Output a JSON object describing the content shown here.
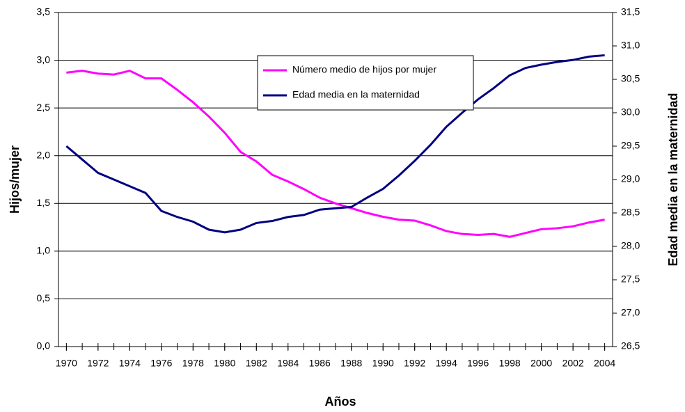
{
  "chart_data": {
    "type": "line",
    "xlabel": "Años",
    "ylabel": "Hijos/mujer",
    "y2label": "Edad media en la maternidad",
    "x": [
      1970,
      1971,
      1972,
      1973,
      1974,
      1975,
      1976,
      1977,
      1978,
      1979,
      1980,
      1981,
      1982,
      1983,
      1984,
      1985,
      1986,
      1987,
      1988,
      1989,
      1990,
      1991,
      1992,
      1993,
      1994,
      1995,
      1996,
      1997,
      1998,
      1999,
      2000,
      2001,
      2002,
      2003,
      2004
    ],
    "xlim": [
      1969.5,
      2004.5
    ],
    "xticks": [
      1970,
      1972,
      1974,
      1976,
      1978,
      1980,
      1982,
      1984,
      1986,
      1988,
      1990,
      1992,
      1994,
      1996,
      1998,
      2000,
      2002,
      2004
    ],
    "ylim": [
      0,
      3.5
    ],
    "yticks": [
      {
        "value": 0,
        "label": "0,0"
      },
      {
        "value": 0.5,
        "label": "0,5"
      },
      {
        "value": 1,
        "label": "1,0"
      },
      {
        "value": 1.5,
        "label": "1,5"
      },
      {
        "value": 2,
        "label": "2,0"
      },
      {
        "value": 2.5,
        "label": "2,5"
      },
      {
        "value": 3,
        "label": "3,0"
      },
      {
        "value": 3.5,
        "label": "3,5"
      }
    ],
    "y2lim": [
      26.5,
      31.5
    ],
    "y2ticks": [
      {
        "value": 26.5,
        "label": "26,5"
      },
      {
        "value": 27,
        "label": "27,0"
      },
      {
        "value": 27.5,
        "label": "27,5"
      },
      {
        "value": 28,
        "label": "28,0"
      },
      {
        "value": 28.5,
        "label": "28,5"
      },
      {
        "value": 29,
        "label": "29,0"
      },
      {
        "value": 29.5,
        "label": "29,5"
      },
      {
        "value": 30,
        "label": "30,0"
      },
      {
        "value": 30.5,
        "label": "30,5"
      },
      {
        "value": 31,
        "label": "31,0"
      },
      {
        "value": 31.5,
        "label": "31,5"
      }
    ],
    "grid": true,
    "legend": "upper center",
    "series": [
      {
        "name": "Número medio de hijos por mujer",
        "color": "#ff00ff",
        "values": [
          2.87,
          2.89,
          2.86,
          2.85,
          2.89,
          2.81,
          2.81,
          2.69,
          2.56,
          2.41,
          2.24,
          2.04,
          1.94,
          1.8,
          1.73,
          1.65,
          1.56,
          1.5,
          1.45,
          1.4,
          1.36,
          1.33,
          1.32,
          1.27,
          1.21,
          1.18,
          1.17,
          1.18,
          1.15,
          1.19,
          1.23,
          1.24,
          1.26,
          1.3,
          1.33
        ]
      },
      {
        "name": "Edad media en la maternidad",
        "color": "#000080",
        "axis": "y2",
        "values": [
          29.5,
          29.3,
          29.1,
          29.0,
          28.9,
          28.8,
          28.53,
          28.44,
          28.37,
          28.25,
          28.21,
          28.25,
          28.35,
          28.38,
          28.44,
          28.47,
          28.55,
          28.57,
          28.59,
          28.73,
          28.86,
          29.06,
          29.28,
          29.52,
          29.79,
          30.0,
          30.2,
          30.37,
          30.56,
          30.67,
          30.72,
          30.76,
          30.79,
          30.84,
          30.86
        ]
      }
    ]
  }
}
